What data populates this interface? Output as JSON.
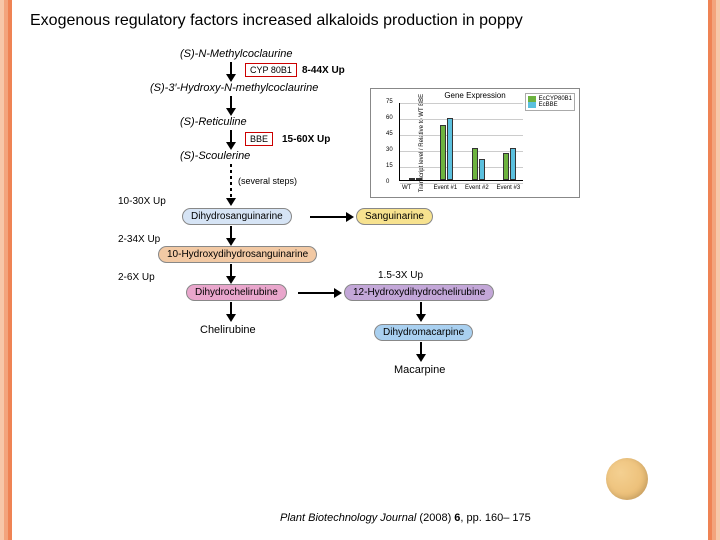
{
  "border": {
    "colors": [
      "#f7c7a8",
      "#f3a47c",
      "#ef8354"
    ],
    "widths": [
      4,
      4,
      4
    ]
  },
  "title": "Exogenous regulatory factors increased alkaloids production in poppy",
  "pathway": {
    "c0": "(S)-N-Methylcoclaurine",
    "e0": "CYP 80B1",
    "u0": "8-44X Up",
    "c1": "(S)-3′-Hydroxy-N-methylcoclaurine",
    "c2": "(S)-Reticuline",
    "e1": "BBE",
    "u1": "15-60X Up",
    "c3": "(S)-Scoulerine",
    "steps": "(several steps)",
    "u2": "10-30X Up",
    "c4": "Dihydrosanguinarine",
    "c4b": "Sanguinarine",
    "u3": "2-34X Up",
    "c5": "10-Hydroxydihydrosanguinarine",
    "u4": "2-6X Up",
    "c6": "Dihydrochelirubine",
    "u5": "1.5-3X Up",
    "c6b": "12-Hydroxydihydrochelirubine",
    "c7": "Chelirubine",
    "c7b": "Dihydromacarpine",
    "c8": "Macarpine"
  },
  "pill_colors": {
    "dhs": "#d6e4f5",
    "sang": "#f7e28f",
    "hdhs": "#f2c9a4",
    "dhc": "#e9a6cc",
    "hdhc": "#c3a7d8",
    "dhm": "#a9d0f0"
  },
  "chart": {
    "title": "Gene Expression",
    "ylabel": "Transcript level / Relative to WT BBE",
    "ylim": [
      0,
      75
    ],
    "yticks": [
      0,
      15,
      30,
      45,
      60,
      75
    ],
    "categories": [
      "WT",
      "Event #1",
      "Event #2",
      "Event #3"
    ],
    "series": [
      {
        "name": "EcCYP80B1",
        "color": "#6db33f",
        "values": [
          1,
          52,
          30,
          25
        ]
      },
      {
        "name": "EcBBE",
        "color": "#5bc0de",
        "values": [
          1,
          58,
          20,
          30
        ]
      }
    ],
    "grid_color": "#cccccc",
    "bg": "#ffffff"
  },
  "citation_prefix": "Plant Biotechnology Journal",
  "citation_mid": " (2008) ",
  "citation_vol": "6",
  "citation_suffix": ", pp. 160– 175"
}
